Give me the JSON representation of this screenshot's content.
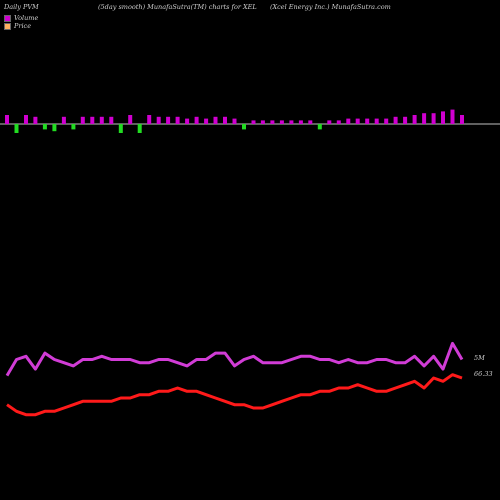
{
  "header": {
    "left": "Daily PVM",
    "center": "(5day smooth) MunafaSutra(TM) charts for XEL",
    "right": "(Xcel Energy Inc.) MunafaSutra.com"
  },
  "legend": [
    {
      "label": "Volume",
      "color": "#d000d0"
    },
    {
      "label": "Price",
      "color": "#ffb060"
    }
  ],
  "colors": {
    "bar_up": "#d000d0",
    "bar_down": "#22dd22",
    "volume_line": "#d13cd6",
    "price_line": "#ff1a1a",
    "background": "#000000",
    "baseline": "#ffffff"
  },
  "chart_data": {
    "type": "bar",
    "bars": {
      "values": [
        0.5,
        0.5,
        0.5,
        0.4,
        0.3,
        0.4,
        0.4,
        0.3,
        0.4,
        0.4,
        0.4,
        0.4,
        0.5,
        0.5,
        0.5,
        0.5,
        0.4,
        0.4,
        0.4,
        0.3,
        0.4,
        0.3,
        0.4,
        0.4,
        0.3,
        0.3,
        0.2,
        0.2,
        0.2,
        0.2,
        0.2,
        0.2,
        0.2,
        0.3,
        0.2,
        0.2,
        0.3,
        0.3,
        0.3,
        0.3,
        0.3,
        0.4,
        0.4,
        0.5,
        0.6,
        0.6,
        0.7,
        0.8,
        0.5
      ],
      "directions": [
        "up",
        "down",
        "up",
        "up",
        "down",
        "down",
        "up",
        "down",
        "up",
        "up",
        "up",
        "up",
        "down",
        "up",
        "down",
        "up",
        "up",
        "up",
        "up",
        "up",
        "up",
        "up",
        "up",
        "up",
        "up",
        "down",
        "up",
        "up",
        "up",
        "up",
        "up",
        "up",
        "up",
        "down",
        "up",
        "up",
        "up",
        "up",
        "up",
        "up",
        "up",
        "up",
        "up",
        "up",
        "up",
        "up",
        "up",
        "up",
        "up"
      ]
    },
    "volume_line": [
      42,
      47,
      48,
      44,
      49,
      47,
      46,
      45,
      47,
      47,
      48,
      47,
      47,
      47,
      46,
      46,
      47,
      47,
      46,
      45,
      47,
      47,
      49,
      49,
      45,
      47,
      48,
      46,
      46,
      46,
      47,
      48,
      48,
      47,
      47,
      46,
      47,
      46,
      46,
      47,
      47,
      46,
      46,
      48,
      45,
      48,
      44,
      52,
      47
    ],
    "price_line": [
      27,
      25,
      24,
      24,
      25,
      25,
      26,
      27,
      28,
      28,
      28,
      28,
      29,
      29,
      30,
      30,
      31,
      31,
      32,
      31,
      31,
      30,
      29,
      28,
      27,
      27,
      26,
      26,
      27,
      28,
      29,
      30,
      30,
      31,
      31,
      32,
      32,
      33,
      32,
      31,
      31,
      32,
      33,
      34,
      32,
      35,
      34,
      36,
      35
    ],
    "price_series_values_note": "",
    "labels": {
      "volume_last": "5M",
      "price_last": "66.33"
    }
  }
}
